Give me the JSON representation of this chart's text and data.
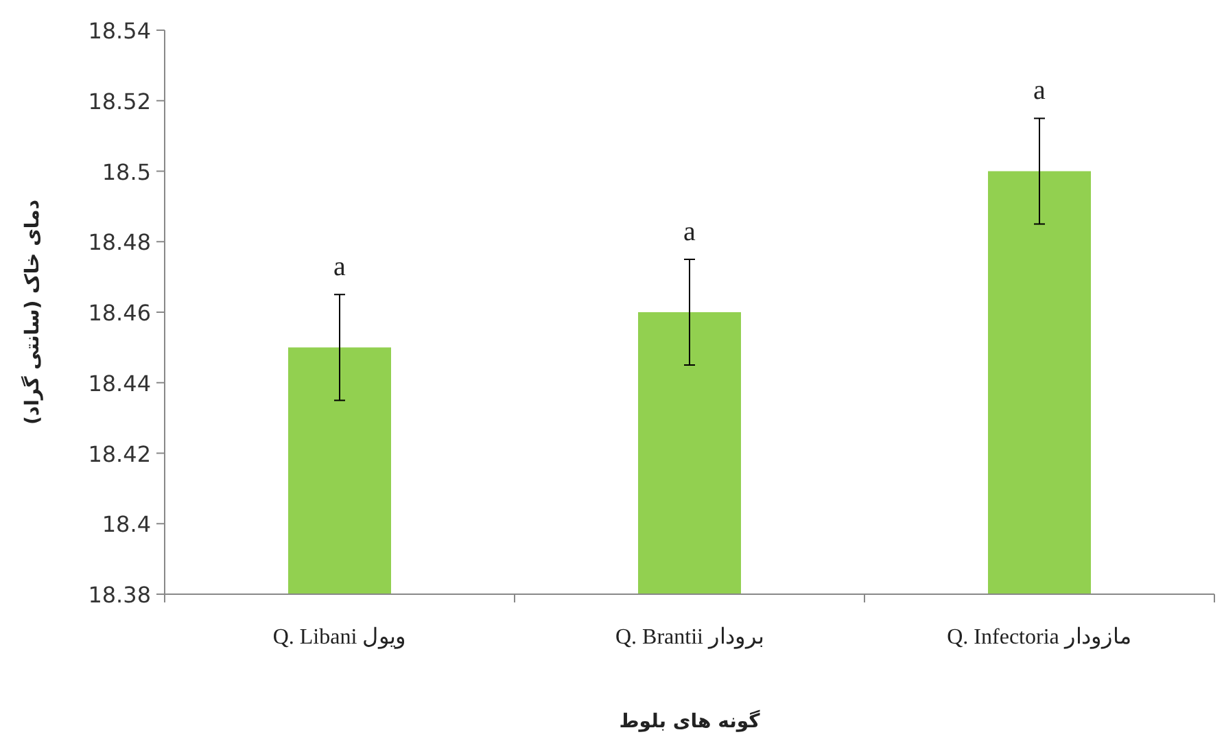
{
  "chart_data": {
    "type": "bar",
    "ylabel": "دمای خاک (سانتی گراد)",
    "xlabel": "گونه های بلوط",
    "categories": [
      "Q. Libani ویول",
      "Q. Brantii برودار",
      "Q. Infectoria مازودار"
    ],
    "values": [
      18.45,
      18.46,
      18.5
    ],
    "errors": [
      0.015,
      0.015,
      0.015
    ],
    "color": "#92d050",
    "ylim": [
      18.38,
      18.54
    ],
    "yticks": [
      18.38,
      18.4,
      18.42,
      18.44,
      18.46,
      18.48,
      18.5,
      18.52,
      18.54
    ],
    "value_labels": [
      "a",
      "a",
      "a"
    ]
  }
}
